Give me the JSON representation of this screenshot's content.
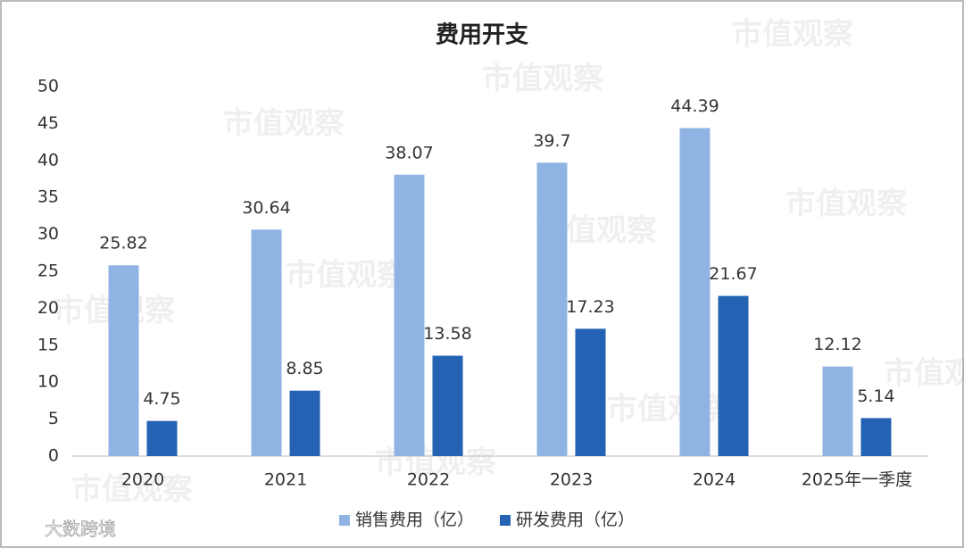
{
  "chart_data": {
    "type": "bar",
    "title": "费用开支",
    "categories": [
      "2020",
      "2021",
      "2022",
      "2023",
      "2024",
      "2025年一季度"
    ],
    "series": [
      {
        "name": "销售费用（亿）",
        "color": "#8fb4e3",
        "values": [
          25.82,
          30.64,
          38.07,
          39.7,
          44.39,
          12.12
        ]
      },
      {
        "name": "研发费用（亿）",
        "color": "#2462b4",
        "values": [
          4.75,
          8.85,
          13.58,
          17.23,
          21.67,
          5.14
        ]
      }
    ],
    "ylim": [
      0,
      50
    ],
    "yticks": [
      0,
      5,
      10,
      15,
      20,
      25,
      30,
      35,
      40,
      45,
      50
    ],
    "grid": false,
    "legend": "bottom",
    "watermark": "市值观察",
    "credit": "大数跨境"
  }
}
